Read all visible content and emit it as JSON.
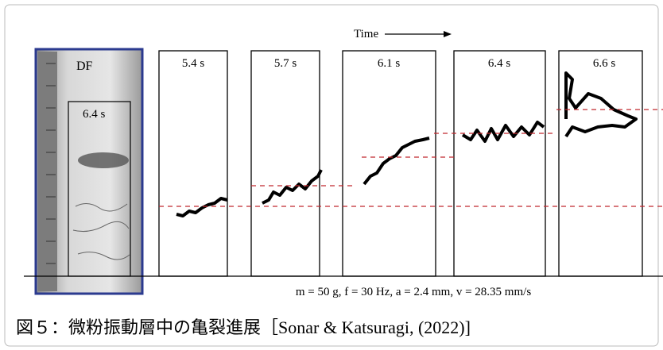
{
  "figure": {
    "time_label": "Time",
    "photo": {
      "label": "DF",
      "time": "6.4 s"
    },
    "panels": [
      "5.4 s",
      "5.7 s",
      "6.1 s",
      "6.4 s",
      "6.6 s"
    ],
    "conditions": "m = 50 g, f = 30 Hz, a = 2.4 mm, v = 28.35 mm/s"
  },
  "caption": "図５：微粉振動層中の亀裂進展［Sonar & Katsuragi, (2022)]"
}
